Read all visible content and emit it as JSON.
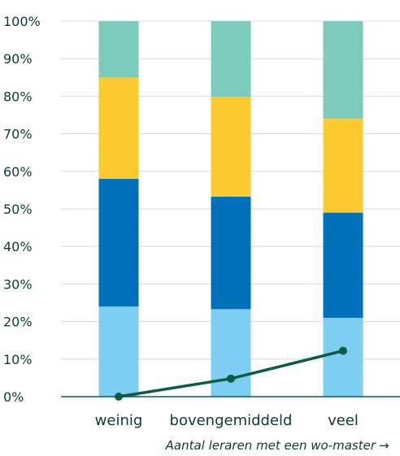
{
  "chart_data": {
    "type": "bar",
    "stacked": true,
    "categories": [
      "weinig",
      "bovengemiddeld",
      "veel"
    ],
    "series": [
      {
        "values": [
          24,
          23.3,
          21
        ],
        "color": "#7ecdf2"
      },
      {
        "values": [
          34,
          30,
          28
        ],
        "color": "#0070b9"
      },
      {
        "values": [
          27,
          26.5,
          25
        ],
        "color": "#fdcb2f"
      },
      {
        "values": [
          15,
          20.2,
          26
        ],
        "color": "#7ccbbd"
      }
    ],
    "line": {
      "values": [
        0,
        4.8,
        12.2
      ],
      "color": "#0b5c41"
    },
    "yticks": [
      "0%",
      "10%",
      "20%",
      "30%",
      "40%",
      "50%",
      "60%",
      "70%",
      "80%",
      "90%",
      "100%"
    ],
    "ylim": [
      0,
      100
    ],
    "xlabel": "Aantal leraren met een wo-master",
    "arrow": "→",
    "grid": true,
    "legend": "none"
  }
}
